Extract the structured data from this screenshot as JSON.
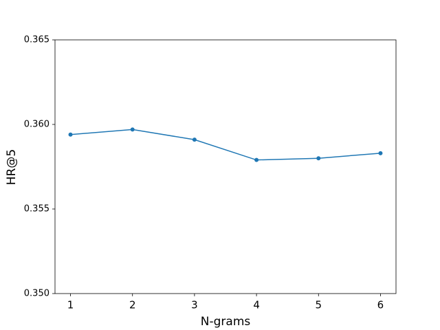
{
  "chart_data": {
    "type": "line",
    "x": [
      1,
      2,
      3,
      4,
      5,
      6
    ],
    "series": [
      {
        "values": [
          0.3594,
          0.3597,
          0.3591,
          0.3579,
          0.358,
          0.3583
        ],
        "color": "#1f77b4"
      }
    ],
    "xlabel": "N-grams",
    "ylabel": "HR@5",
    "xlim": [
      0.75,
      6.25
    ],
    "xticks": [
      1,
      2,
      3,
      4,
      5,
      6
    ],
    "ylim": [
      0.35,
      0.365
    ],
    "yticks": [
      {
        "value": 0.35,
        "label": "0.350"
      },
      {
        "value": 0.355,
        "label": "0.355"
      },
      {
        "value": 0.36,
        "label": "0.360"
      },
      {
        "value": 0.365,
        "label": "0.365"
      }
    ],
    "markers": true,
    "grid": false
  }
}
